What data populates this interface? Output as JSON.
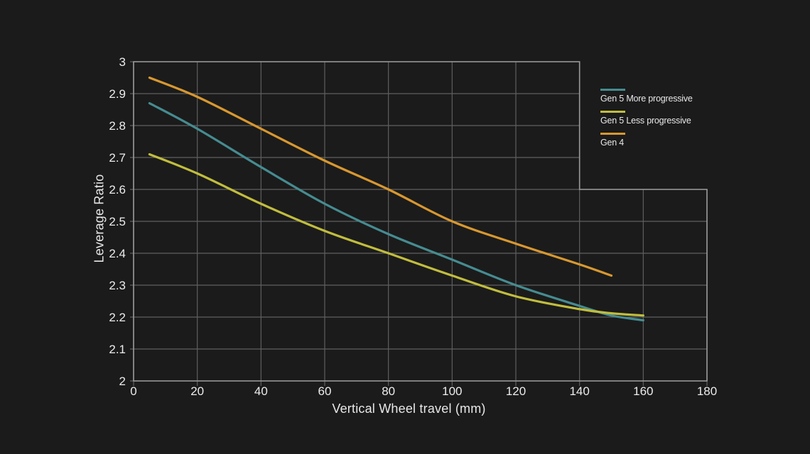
{
  "chart_data": {
    "type": "line",
    "title": "",
    "xlabel": "Vertical Wheel travel (mm)",
    "ylabel": "Leverage Ratio",
    "xlim": [
      0,
      180
    ],
    "ylim": [
      2,
      3
    ],
    "grid": "on",
    "grid_break": {
      "x": 140,
      "y": 2.6
    },
    "legend_position": "right-top",
    "x_ticks": {
      "values": [
        0,
        20,
        40,
        60,
        80,
        100,
        120,
        140,
        160,
        180
      ],
      "labels": [
        "0",
        "20",
        "40",
        "60",
        "80",
        "100",
        "120",
        "140",
        "160",
        "180"
      ]
    },
    "y_ticks": {
      "values": [
        2,
        2.1,
        2.2,
        2.3,
        2.4,
        2.5,
        2.6,
        2.7,
        2.8,
        2.9,
        3
      ],
      "labels": [
        "2",
        "2.1",
        "2.2",
        "2.3",
        "2.4",
        "2.5",
        "2.6",
        "2.7",
        "2.8",
        "2.9",
        "3"
      ]
    },
    "series": [
      {
        "name": "Gen 5 More progressive",
        "color": "#468C91",
        "x": [
          5,
          20,
          40,
          60,
          80,
          100,
          120,
          140,
          150,
          160
        ],
        "y": [
          2.87,
          2.79,
          2.67,
          2.555,
          2.46,
          2.38,
          2.3,
          2.235,
          2.205,
          2.19
        ]
      },
      {
        "name": "Gen 5 Less progressive",
        "color": "#C1BD3E",
        "x": [
          5,
          20,
          40,
          60,
          80,
          100,
          120,
          140,
          150,
          160
        ],
        "y": [
          2.71,
          2.65,
          2.555,
          2.47,
          2.4,
          2.33,
          2.265,
          2.225,
          2.212,
          2.205
        ]
      },
      {
        "name": "Gen 4",
        "color": "#D89830",
        "x": [
          5,
          20,
          40,
          60,
          80,
          100,
          120,
          140,
          150
        ],
        "y": [
          2.95,
          2.89,
          2.79,
          2.69,
          2.6,
          2.5,
          2.43,
          2.365,
          2.33
        ]
      }
    ]
  },
  "colors": {
    "background": "#1B1B1B",
    "grid": "#5F5F5F",
    "axis": "#9A9A9A",
    "tick_text": "#ECECEC"
  }
}
